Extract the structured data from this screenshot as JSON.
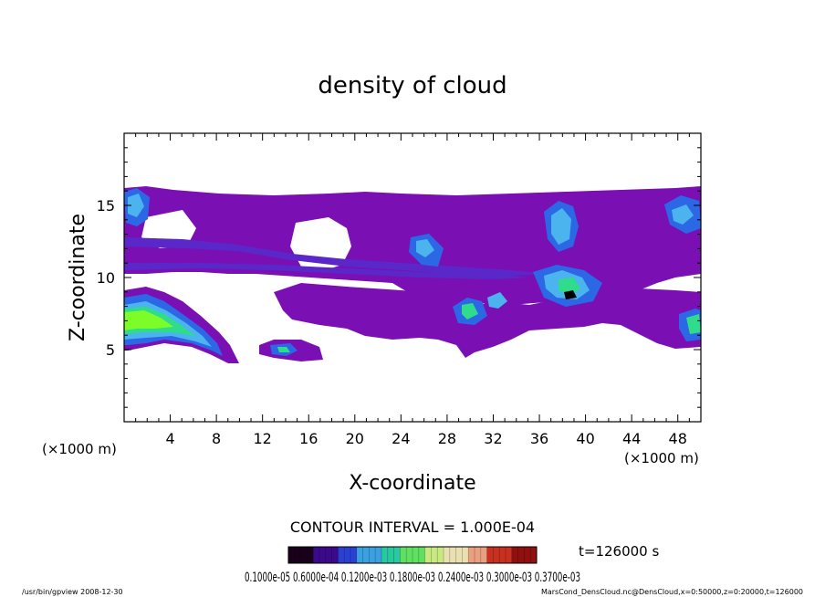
{
  "chart_data": {
    "type": "heatmap",
    "title": "density of cloud",
    "xlabel": "X-coordinate",
    "ylabel": "Z-coordinate",
    "x_unit": "(×1000 m)",
    "y_unit": "(×1000 m)",
    "xlim": [
      0,
      50
    ],
    "ylim": [
      0,
      20
    ],
    "x_ticks": [
      4,
      8,
      12,
      16,
      20,
      24,
      28,
      32,
      36,
      40,
      44,
      48
    ],
    "y_ticks": [
      5,
      10,
      15
    ],
    "contour_interval_text": "CONTOUR INTERVAL = 1.000E-04",
    "time_text": "t=126000 s",
    "colorbar_labels_text": "0.1000e-05 0.6000e-04 0.1200e-03 0.1800e-03 0.2400e-03 0.3000e-03 0.3700e-03",
    "colorbar_colors": [
      "#1a001a",
      "#3a0a8a",
      "#2a40d0",
      "#3aa0e0",
      "#28c8a0",
      "#60e060",
      "#c8e880",
      "#e8e0b0",
      "#e8a080",
      "#c83020",
      "#901010"
    ],
    "field_colors": {
      "low": "#7a0fb4",
      "mid_low": "#5a28c8",
      "mid": "#2c68e6",
      "mid_high": "#4bb4ee",
      "high": "#2edc8c",
      "very_high": "#7cfc28"
    },
    "legend_placement": "bottom",
    "grid": false
  },
  "footer": {
    "left": "/usr/bin/gpview  2008-12-30",
    "right": "MarsCond_DensCloud.nc@DensCloud,x=0:50000,z=0:20000,t=126000"
  }
}
